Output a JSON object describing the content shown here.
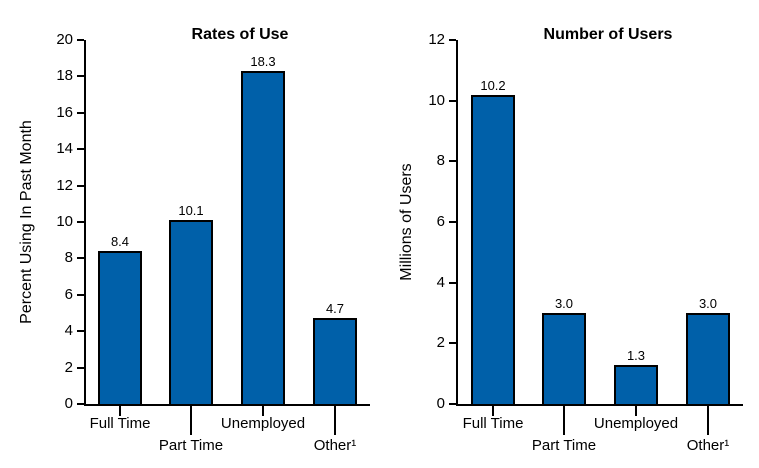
{
  "figure": {
    "background": "#ffffff",
    "text_color": "#000000",
    "axis_color": "#000000"
  },
  "chart_data": [
    {
      "type": "bar",
      "title": "Rates of Use",
      "ylabel": "Percent Using In Past Month",
      "xlabel": "",
      "categories": [
        "Full Time",
        "Part Time",
        "Unemployed",
        "Other¹"
      ],
      "values": [
        8.4,
        10.1,
        18.3,
        4.7
      ],
      "value_labels": [
        "8.4",
        "10.1",
        "18.3",
        "4.7"
      ],
      "ylim": [
        0,
        20
      ],
      "ytick_step": 2,
      "grid": false,
      "bar_color": "#0060A9",
      "bar_border_color": "#000000"
    },
    {
      "type": "bar",
      "title": "Number of Users",
      "ylabel": "Millions of Users",
      "xlabel": "",
      "categories": [
        "Full Time",
        "Part Time",
        "Unemployed",
        "Other¹"
      ],
      "values": [
        10.2,
        3.0,
        1.3,
        3.0
      ],
      "value_labels": [
        "10.2",
        "3.0",
        "1.3",
        "3.0"
      ],
      "ylim": [
        0,
        12
      ],
      "ytick_step": 2,
      "grid": false,
      "bar_color": "#0060A9",
      "bar_border_color": "#000000"
    }
  ]
}
